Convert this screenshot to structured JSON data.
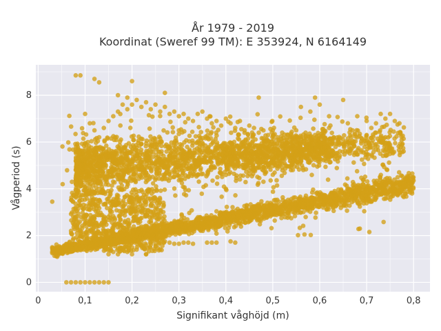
{
  "chart_data": {
    "type": "scatter",
    "title_lines": [
      "År 1979 - 2019",
      "Koordinat (Sweref 99 TM): E 353924, N 6164149"
    ],
    "xlabel": "Signifikant våghöjd (m)",
    "ylabel": "Vågperiod (s)",
    "xlim": [
      -0.005,
      0.835
    ],
    "ylim": [
      -0.4,
      9.3
    ],
    "xticks": [
      0,
      0.1,
      0.2,
      0.3,
      0.4,
      0.5,
      0.6,
      0.7,
      0.8
    ],
    "xtick_labels": [
      "0",
      "0,1",
      "0,2",
      "0,3",
      "0,4",
      "0,5",
      "0,6",
      "0,7",
      "0,8"
    ],
    "yticks": [
      0,
      2,
      4,
      6,
      8
    ],
    "ytick_labels": [
      "0",
      "2",
      "4",
      "6",
      "8"
    ],
    "grid": true,
    "legend": "none",
    "marker_color": "#d4a017",
    "plot_background": "#e8e8f0",
    "points_note_omitted": true,
    "series": [
      {
        "points": [
          [
            0.06,
            0
          ],
          [
            0.07,
            0
          ],
          [
            0.08,
            0
          ],
          [
            0.09,
            0
          ],
          [
            0.1,
            0
          ],
          [
            0.11,
            0
          ],
          [
            0.12,
            0
          ],
          [
            0.13,
            0
          ],
          [
            0.14,
            0
          ],
          [
            0.15,
            0
          ],
          [
            0.03,
            3.45
          ],
          [
            0.03,
            1.5
          ],
          [
            0.03,
            1.3
          ],
          [
            0.04,
            1.4
          ],
          [
            0.05,
            1.5
          ],
          [
            0.06,
            1.55
          ],
          [
            0.07,
            1.5
          ],
          [
            0.08,
            1.6
          ],
          [
            0.08,
            8.85
          ],
          [
            0.09,
            8.85
          ],
          [
            0.12,
            8.7
          ],
          [
            0.13,
            8.55
          ],
          [
            0.2,
            8.6
          ],
          [
            0.27,
            8.1
          ],
          [
            0.17,
            8.0
          ],
          [
            0.19,
            7.9
          ],
          [
            0.1,
            7.2
          ],
          [
            0.11,
            6.8
          ],
          [
            0.12,
            6.5
          ],
          [
            0.13,
            6.2
          ],
          [
            0.14,
            6.6
          ],
          [
            0.15,
            6.9
          ],
          [
            0.16,
            7.1
          ],
          [
            0.17,
            7.3
          ],
          [
            0.18,
            7.6
          ],
          [
            0.19,
            7.4
          ],
          [
            0.2,
            7.6
          ],
          [
            0.21,
            7.8
          ],
          [
            0.22,
            7.5
          ],
          [
            0.23,
            7.7
          ],
          [
            0.24,
            7.4
          ],
          [
            0.25,
            7.6
          ],
          [
            0.26,
            7.3
          ],
          [
            0.27,
            7.5
          ],
          [
            0.28,
            7.2
          ],
          [
            0.29,
            7.3
          ],
          [
            0.3,
            7.1
          ],
          [
            0.31,
            7.2
          ],
          [
            0.32,
            7.0
          ],
          [
            0.33,
            6.9
          ],
          [
            0.34,
            7.2
          ],
          [
            0.35,
            7.3
          ],
          [
            0.36,
            7.0
          ],
          [
            0.37,
            6.8
          ],
          [
            0.38,
            6.9
          ],
          [
            0.39,
            6.7
          ],
          [
            0.4,
            7.0
          ],
          [
            0.41,
            6.8
          ],
          [
            0.42,
            6.6
          ],
          [
            0.43,
            6.9
          ],
          [
            0.44,
            6.5
          ],
          [
            0.45,
            6.7
          ],
          [
            0.46,
            6.6
          ],
          [
            0.47,
            6.4
          ],
          [
            0.48,
            6.5
          ],
          [
            0.49,
            6.3
          ],
          [
            0.5,
            6.5
          ],
          [
            0.51,
            6.2
          ],
          [
            0.52,
            6.4
          ],
          [
            0.53,
            6.1
          ],
          [
            0.54,
            6.3
          ],
          [
            0.55,
            6.5
          ],
          [
            0.56,
            6.2
          ],
          [
            0.57,
            6.4
          ],
          [
            0.58,
            6.1
          ],
          [
            0.59,
            6.3
          ],
          [
            0.6,
            6.0
          ],
          [
            0.61,
            6.4
          ],
          [
            0.62,
            6.6
          ],
          [
            0.63,
            6.2
          ],
          [
            0.65,
            7.8
          ],
          [
            0.66,
            6.8
          ],
          [
            0.67,
            6.5
          ],
          [
            0.68,
            7.1
          ],
          [
            0.7,
            6.9
          ],
          [
            0.71,
            6.6
          ],
          [
            0.72,
            6.8
          ],
          [
            0.73,
            7.2
          ],
          [
            0.74,
            7.0
          ],
          [
            0.75,
            7.2
          ],
          [
            0.76,
            6.9
          ],
          [
            0.77,
            6.8
          ],
          [
            0.62,
            7.1
          ],
          [
            0.58,
            7.3
          ],
          [
            0.59,
            7.9
          ],
          [
            0.6,
            7.6
          ],
          [
            0.56,
            7.5
          ],
          [
            0.47,
            7.9
          ],
          [
            0.07,
            2.2
          ],
          [
            0.08,
            2.8
          ],
          [
            0.09,
            3.3
          ],
          [
            0.1,
            4.0
          ],
          [
            0.11,
            2.6
          ],
          [
            0.12,
            3.8
          ],
          [
            0.13,
            1.8
          ],
          [
            0.14,
            2.2
          ],
          [
            0.15,
            1.2
          ],
          [
            0.16,
            1.3
          ],
          [
            0.17,
            1.2
          ],
          [
            0.18,
            1.4
          ],
          [
            0.19,
            1.3
          ],
          [
            0.2,
            1.5
          ],
          [
            0.21,
            1.4
          ],
          [
            0.22,
            1.6
          ],
          [
            0.23,
            1.6
          ],
          [
            0.24,
            1.7
          ],
          [
            0.25,
            1.65
          ],
          [
            0.26,
            1.7
          ],
          [
            0.27,
            1.75
          ],
          [
            0.28,
            1.7
          ],
          [
            0.29,
            1.65
          ],
          [
            0.3,
            1.65
          ],
          [
            0.31,
            1.7
          ],
          [
            0.32,
            1.7
          ],
          [
            0.33,
            1.65
          ],
          [
            0.37,
            1.7
          ],
          [
            0.38,
            1.7
          ],
          [
            0.41,
            1.75
          ],
          [
            0.23,
            1.2
          ],
          [
            0.2,
            1.2
          ],
          [
            0.3,
            2.1
          ],
          [
            0.35,
            2.3
          ],
          [
            0.4,
            2.5
          ],
          [
            0.45,
            2.7
          ],
          [
            0.5,
            2.9
          ],
          [
            0.55,
            3.1
          ],
          [
            0.6,
            3.3
          ],
          [
            0.65,
            3.5
          ],
          [
            0.7,
            3.7
          ],
          [
            0.75,
            3.9
          ],
          [
            0.78,
            4.1
          ],
          [
            0.8,
            4.35
          ],
          [
            0.77,
            4.2
          ],
          [
            0.73,
            4.2
          ],
          [
            0.71,
            4.05
          ],
          [
            0.69,
            3.85
          ],
          [
            0.66,
            3.75
          ],
          [
            0.63,
            3.55
          ],
          [
            0.61,
            3.45
          ],
          [
            0.58,
            3.25
          ],
          [
            0.55,
            3.35
          ],
          [
            0.52,
            3.05
          ],
          [
            0.49,
            2.95
          ],
          [
            0.46,
            2.8
          ],
          [
            0.43,
            2.6
          ],
          [
            0.41,
            2.7
          ],
          [
            0.38,
            2.5
          ],
          [
            0.36,
            2.4
          ],
          [
            0.33,
            2.3
          ],
          [
            0.31,
            2.15
          ],
          [
            0.18,
            4.5
          ],
          [
            0.2,
            5.5
          ],
          [
            0.22,
            4.8
          ],
          [
            0.24,
            5.2
          ],
          [
            0.26,
            4.9
          ],
          [
            0.28,
            5.4
          ],
          [
            0.3,
            5.0
          ],
          [
            0.32,
            5.5
          ],
          [
            0.34,
            5.2
          ],
          [
            0.36,
            5.6
          ],
          [
            0.38,
            5.3
          ],
          [
            0.4,
            5.7
          ],
          [
            0.42,
            5.4
          ],
          [
            0.44,
            5.6
          ],
          [
            0.46,
            5.5
          ],
          [
            0.48,
            5.8
          ],
          [
            0.5,
            5.6
          ],
          [
            0.52,
            5.9
          ],
          [
            0.54,
            5.7
          ],
          [
            0.56,
            5.9
          ],
          [
            0.58,
            5.8
          ],
          [
            0.6,
            6.0
          ],
          [
            0.62,
            5.9
          ],
          [
            0.64,
            6.1
          ],
          [
            0.66,
            6.0
          ],
          [
            0.68,
            6.2
          ],
          [
            0.7,
            6.3
          ],
          [
            0.72,
            6.4
          ],
          [
            0.74,
            6.2
          ],
          [
            0.45,
            5.0
          ],
          [
            0.47,
            4.9
          ],
          [
            0.5,
            4.6
          ],
          [
            0.52,
            4.9
          ],
          [
            0.54,
            5.0
          ],
          [
            0.48,
            4.3
          ],
          [
            0.43,
            4.4
          ],
          [
            0.4,
            4.0
          ],
          [
            0.42,
            1.7
          ],
          [
            0.36,
            1.7
          ],
          [
            0.23,
            1.2
          ]
        ]
      }
    ]
  }
}
